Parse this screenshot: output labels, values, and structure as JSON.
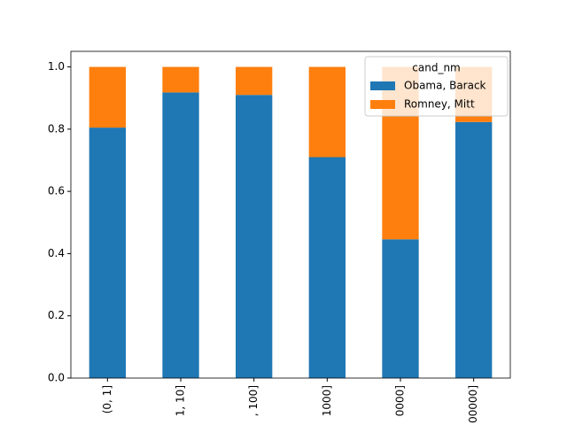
{
  "chart_data": {
    "type": "bar",
    "stacked": true,
    "categories": [
      "(0, 1]",
      "1, 10]",
      ", 100]",
      "1000]",
      "0000]",
      "00000]"
    ],
    "series": [
      {
        "name": "Obama, Barack",
        "color": "#1f77b4",
        "values": [
          0.805,
          0.918,
          0.91,
          0.71,
          0.446,
          0.823
        ]
      },
      {
        "name": "Romney, Mitt",
        "color": "#ff7f0e",
        "values": [
          0.195,
          0.082,
          0.09,
          0.29,
          0.554,
          0.177
        ]
      }
    ],
    "ylim": [
      0,
      1.05
    ],
    "yticks": [
      {
        "value": 0,
        "label": "0.0"
      },
      {
        "value": 0.2,
        "label": "0.2"
      },
      {
        "value": 0.4,
        "label": "0.4"
      },
      {
        "value": 0.6,
        "label": "0.6"
      },
      {
        "value": 0.8,
        "label": "0.8"
      },
      {
        "value": 1,
        "label": "1.0"
      }
    ],
    "legend_title": "cand_nm",
    "legend_position": "upper right"
  }
}
